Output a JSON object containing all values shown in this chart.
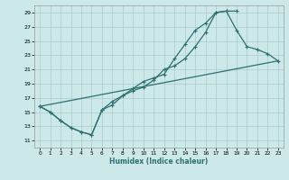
{
  "title": "",
  "xlabel": "Humidex (Indice chaleur)",
  "bg_color": "#cce8e8",
  "grid_color": "#aacccc",
  "line_color": "#2d7070",
  "xlim": [
    -0.5,
    23.5
  ],
  "ylim": [
    10,
    30
  ],
  "xticks": [
    0,
    1,
    2,
    3,
    4,
    5,
    6,
    7,
    8,
    9,
    10,
    11,
    12,
    13,
    14,
    15,
    16,
    17,
    18,
    19,
    20,
    21,
    22,
    23
  ],
  "yticks": [
    11,
    13,
    15,
    17,
    19,
    21,
    23,
    25,
    27,
    29
  ],
  "line1_x": [
    0,
    1,
    2,
    3,
    4,
    5,
    6,
    7,
    8,
    9,
    10,
    11,
    12,
    13,
    14,
    15,
    16,
    17,
    18,
    19
  ],
  "line1_y": [
    15.8,
    15.0,
    13.8,
    12.8,
    12.2,
    11.8,
    15.3,
    16.5,
    17.3,
    18.3,
    19.3,
    19.8,
    20.3,
    22.5,
    24.5,
    26.5,
    27.5,
    29.0,
    29.2,
    29.2
  ],
  "line2_x": [
    0,
    1,
    2,
    3,
    4,
    5,
    6,
    7,
    8,
    9,
    10,
    11,
    12,
    13,
    14,
    15,
    16,
    17,
    18,
    19,
    20,
    21,
    22,
    23
  ],
  "line2_y": [
    15.8,
    15.0,
    13.8,
    12.8,
    12.2,
    11.8,
    15.3,
    16.0,
    17.3,
    18.0,
    18.5,
    19.5,
    21.0,
    21.5,
    22.5,
    24.2,
    26.2,
    29.0,
    29.2,
    26.5,
    24.2,
    23.8,
    23.2,
    22.2
  ],
  "line3_x": [
    0,
    23
  ],
  "line3_y": [
    15.8,
    22.2
  ]
}
